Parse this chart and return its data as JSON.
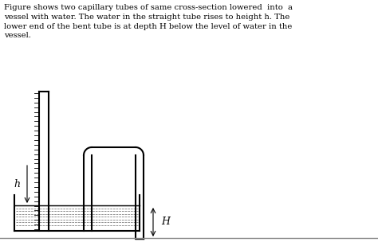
{
  "title_text": "Figure shows two capillary tubes of same cross-section lowered  into  a\nvessel with water. The water in the straight tube rises to height h. The\nlower end of the bent tube is at depth H below the level of water in the\nvessel.",
  "bg_color": "#ffffff",
  "line_color": "#000000",
  "lw": 1.5
}
